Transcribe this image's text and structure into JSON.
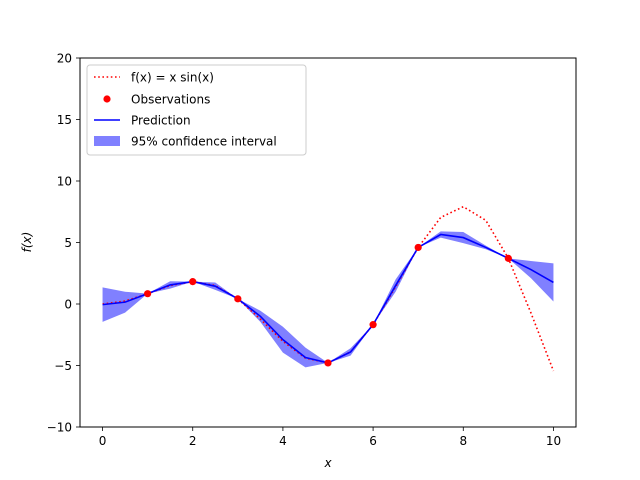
{
  "chart_data": {
    "type": "line",
    "title": "",
    "xlabel": "x",
    "ylabel": "f(x)",
    "xlim": [
      -0.5,
      10.5
    ],
    "ylim": [
      -10,
      20
    ],
    "xticks": [
      0,
      2,
      4,
      6,
      8,
      10
    ],
    "yticks": [
      -10,
      -5,
      0,
      5,
      10,
      15,
      20
    ],
    "grid": false,
    "legend_position": "top-left",
    "legend": [
      {
        "label": "f(x) = x sin(x)",
        "style": "dotted-line",
        "color": "#ff0000"
      },
      {
        "label": "Observations",
        "style": "marker",
        "color": "#ff0000"
      },
      {
        "label": "Prediction",
        "style": "solid-line",
        "color": "#0000ff"
      },
      {
        "label": "95% confidence interval",
        "style": "band",
        "color": "#8080ff"
      }
    ],
    "series": [
      {
        "name": "f(x) = x sin(x)",
        "color": "#ff0000",
        "x": [
          0,
          0.5,
          1,
          1.5,
          2,
          2.5,
          3,
          3.5,
          4,
          4.5,
          5,
          5.5,
          6,
          6.5,
          7,
          7.5,
          8,
          8.5,
          9,
          9.5,
          10
        ],
        "y": [
          0,
          0.24,
          0.84,
          1.5,
          1.82,
          1.5,
          0.42,
          -1.23,
          -3.03,
          -4.4,
          -4.79,
          -3.89,
          -1.68,
          1.4,
          4.6,
          7.04,
          7.91,
          6.8,
          3.71,
          -0.72,
          -5.44
        ]
      },
      {
        "name": "Observations",
        "color": "#ff0000",
        "x": [
          1,
          2,
          3,
          5,
          6,
          7,
          9
        ],
        "y": [
          0.84,
          1.82,
          0.42,
          -4.79,
          -1.68,
          4.6,
          3.71
        ]
      },
      {
        "name": "Prediction",
        "color": "#0000ff",
        "x": [
          0,
          0.5,
          1,
          1.5,
          2,
          2.5,
          3,
          3.5,
          4,
          4.5,
          5,
          5.5,
          6,
          6.5,
          7,
          7.5,
          8,
          8.5,
          9,
          9.5,
          10
        ],
        "y": [
          -0.05,
          0.15,
          0.84,
          1.55,
          1.82,
          1.45,
          0.42,
          -1.0,
          -2.9,
          -4.35,
          -4.79,
          -3.9,
          -1.68,
          1.5,
          4.6,
          5.65,
          5.4,
          4.6,
          3.71,
          2.8,
          1.75
        ]
      },
      {
        "name": "95% confidence interval",
        "color": "#8080ff",
        "x": [
          0,
          0.5,
          1,
          1.5,
          2,
          2.5,
          3,
          3.5,
          4,
          4.5,
          5,
          5.5,
          6,
          6.5,
          7,
          7.5,
          8,
          8.5,
          9,
          9.5,
          10
        ],
        "upper": [
          1.35,
          1.0,
          0.84,
          1.85,
          1.82,
          1.75,
          0.42,
          -0.55,
          -1.85,
          -3.55,
          -4.79,
          -3.6,
          -1.68,
          2.0,
          4.6,
          5.9,
          5.85,
          4.75,
          3.71,
          3.5,
          3.3
        ],
        "lower": [
          -1.45,
          -0.7,
          0.84,
          1.25,
          1.82,
          1.15,
          0.42,
          -1.45,
          -3.95,
          -5.15,
          -4.79,
          -4.2,
          -1.68,
          1.0,
          4.6,
          5.4,
          4.95,
          4.45,
          3.71,
          2.1,
          0.2
        ]
      }
    ]
  }
}
